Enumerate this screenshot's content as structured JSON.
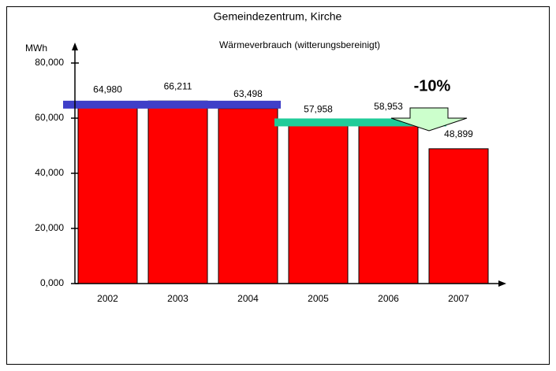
{
  "chart_data": {
    "type": "bar",
    "title": "Gemeindezentrum, Kirche",
    "subtitle": "Wärmeverbrauch (witterungsbereinigt)",
    "y_label": "MWh",
    "annotation": "-10%",
    "categories": [
      "2002",
      "2003",
      "2004",
      "2005",
      "2006",
      "2007"
    ],
    "values": [
      64980,
      66211,
      63498,
      57958,
      58953,
      48899
    ],
    "value_labels": [
      "64,980",
      "66,211",
      "63,498",
      "57,958",
      "58,953",
      "48,899"
    ],
    "color": "#ff0000",
    "ylim": [
      0,
      80000
    ],
    "yticks": [
      {
        "value": 0,
        "label": "0,000"
      },
      {
        "value": 20000,
        "label": "20,000"
      },
      {
        "value": 40000,
        "label": "40,000"
      },
      {
        "value": 60000,
        "label": "60,000"
      },
      {
        "value": 80000,
        "label": "80,000"
      }
    ],
    "reference_lines": [
      {
        "value": 64896,
        "color": "#3f3fc8"
      },
      {
        "value": 58455,
        "color": "#1fcc99"
      }
    ]
  }
}
